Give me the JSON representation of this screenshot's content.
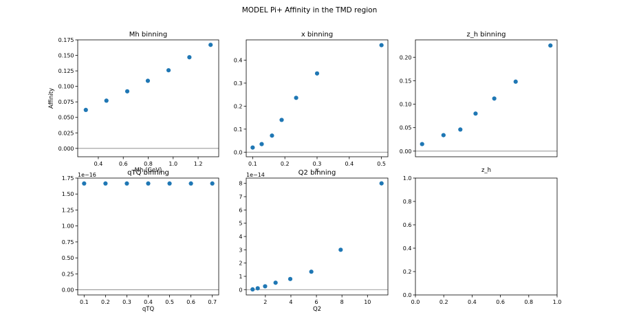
{
  "figure": {
    "suptitle": "MODEL Pi+ Affinity in the TMD region"
  },
  "chart_data": [
    {
      "type": "scatter",
      "title": "Mh binning",
      "xlabel": "Mh (GeV)",
      "ylabel": "Affinity",
      "x": [
        0.3,
        0.465,
        0.632,
        0.797,
        0.963,
        1.13,
        1.3
      ],
      "y": [
        0.062,
        0.077,
        0.092,
        0.109,
        0.126,
        0.147,
        0.167
      ],
      "xlim": [
        0.235,
        1.365
      ],
      "ylim": [
        -0.0135,
        0.175
      ],
      "xticks": [
        0.4,
        0.6,
        0.8,
        1.0,
        1.2
      ],
      "xtick_labels": [
        "0.4",
        "0.6",
        "0.8",
        "1.0",
        "1.2"
      ],
      "yticks": [
        0,
        0.025,
        0.05,
        0.075,
        0.1,
        0.125,
        0.15,
        0.175
      ],
      "ytick_labels": [
        "0.000",
        "0.025",
        "0.050",
        "0.075",
        "0.100",
        "0.125",
        "0.150",
        "0.175"
      ],
      "reference_line_y": 0,
      "marker_color": "#1f77b4"
    },
    {
      "type": "scatter",
      "title": "x binning",
      "xlabel": "x",
      "ylabel": "",
      "x": [
        0.1,
        0.128,
        0.16,
        0.19,
        0.235,
        0.3,
        0.5
      ],
      "y": [
        0.02,
        0.035,
        0.072,
        0.14,
        0.236,
        0.342,
        0.465
      ],
      "xlim": [
        0.08,
        0.52
      ],
      "ylim": [
        -0.02,
        0.488
      ],
      "xticks": [
        0.1,
        0.2,
        0.3,
        0.4,
        0.5
      ],
      "xtick_labels": [
        "0.1",
        "0.2",
        "0.3",
        "0.4",
        "0.5"
      ],
      "yticks": [
        0,
        0.1,
        0.2,
        0.3,
        0.4
      ],
      "ytick_labels": [
        "0.0",
        "0.1",
        "0.2",
        "0.3",
        "0.4"
      ],
      "reference_line_y": 0,
      "marker_color": "#1f77b4"
    },
    {
      "type": "scatter",
      "title": "z_h binning",
      "xlabel": "z_h",
      "ylabel": "",
      "x": [
        0.35,
        0.43,
        0.493,
        0.55,
        0.62,
        0.7,
        0.83
      ],
      "y": [
        0.015,
        0.034,
        0.046,
        0.08,
        0.112,
        0.148,
        0.225
      ],
      "xlim": [
        0.325,
        0.855
      ],
      "ylim": [
        -0.012,
        0.237
      ],
      "xticks": [],
      "xtick_labels": [],
      "yticks": [
        0,
        0.05,
        0.1,
        0.15,
        0.2
      ],
      "ytick_labels": [
        "0.00",
        "0.05",
        "0.10",
        "0.15",
        "0.20"
      ],
      "reference_line_y": 0,
      "marker_color": "#1f77b4"
    },
    {
      "type": "scatter",
      "title": "qTQ binning",
      "xlabel": "qTQ",
      "ylabel": "",
      "offset_text": "1e−16",
      "x": [
        0.1,
        0.2,
        0.3,
        0.4,
        0.5,
        0.6,
        0.7
      ],
      "y": [
        1.665,
        1.665,
        1.665,
        1.665,
        1.665,
        1.665,
        1.665
      ],
      "xlim": [
        0.07,
        0.73
      ],
      "ylim": [
        -0.08,
        1.75
      ],
      "xticks": [
        0.1,
        0.2,
        0.3,
        0.4,
        0.5,
        0.6,
        0.7
      ],
      "xtick_labels": [
        "0.1",
        "0.2",
        "0.3",
        "0.4",
        "0.5",
        "0.6",
        "0.7"
      ],
      "yticks": [
        0,
        0.25,
        0.5,
        0.75,
        1.0,
        1.25,
        1.5,
        1.75
      ],
      "ytick_labels": [
        "0.00",
        "0.25",
        "0.50",
        "0.75",
        "1.00",
        "1.25",
        "1.50",
        "1.75"
      ],
      "reference_line_y": 0,
      "marker_color": "#1f77b4"
    },
    {
      "type": "scatter",
      "title": "Q2 binning",
      "xlabel": "Q2",
      "ylabel": "",
      "offset_text": "1e−14",
      "x": [
        1.0,
        1.4,
        1.98,
        2.8,
        3.95,
        5.6,
        7.9,
        11.1
      ],
      "y": [
        0.02,
        0.1,
        0.25,
        0.52,
        0.8,
        1.35,
        3.0,
        8.0
      ],
      "xlim": [
        0.5,
        11.6
      ],
      "ylim": [
        -0.4,
        8.4
      ],
      "xticks": [
        2,
        4,
        6,
        8,
        10
      ],
      "xtick_labels": [
        "2",
        "4",
        "6",
        "8",
        "10"
      ],
      "yticks": [
        0,
        1,
        2,
        3,
        4,
        5,
        6,
        7,
        8
      ],
      "ytick_labels": [
        "0",
        "1",
        "2",
        "3",
        "4",
        "5",
        "6",
        "7",
        "8"
      ],
      "reference_line_y": 0,
      "marker_color": "#1f77b4"
    },
    {
      "type": "scatter",
      "title": "",
      "xlabel": "",
      "ylabel": "",
      "x": [],
      "y": [],
      "xlim": [
        0,
        1
      ],
      "ylim": [
        0,
        1
      ],
      "xticks": [
        0,
        0.2,
        0.4,
        0.6,
        0.8,
        1.0
      ],
      "xtick_labels": [
        "0.0",
        "0.2",
        "0.4",
        "0.6",
        "0.8",
        "1.0"
      ],
      "yticks": [
        0,
        0.2,
        0.4,
        0.6,
        0.8,
        1.0
      ],
      "ytick_labels": [
        "0.0",
        "0.2",
        "0.4",
        "0.6",
        "0.8",
        "1.0"
      ],
      "marker_color": "#1f77b4"
    }
  ]
}
